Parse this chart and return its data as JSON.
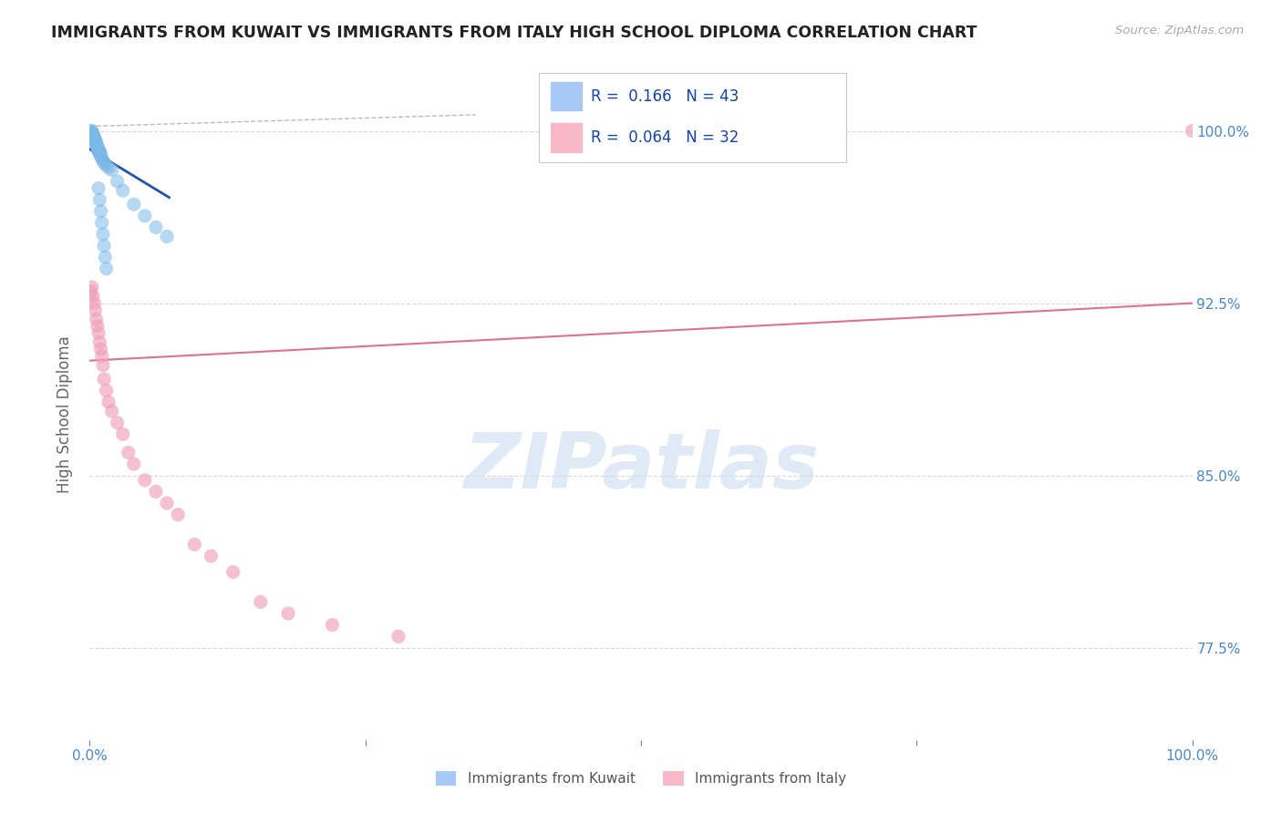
{
  "title": "IMMIGRANTS FROM KUWAIT VS IMMIGRANTS FROM ITALY HIGH SCHOOL DIPLOMA CORRELATION CHART",
  "source_text": "Source: ZipAtlas.com",
  "ylabel": "High School Diploma",
  "x_min": 0.0,
  "x_max": 1.0,
  "y_min": 0.735,
  "y_max": 1.018,
  "y_ticks": [
    0.775,
    0.85,
    0.925,
    1.0
  ],
  "y_tick_labels": [
    "77.5%",
    "85.0%",
    "92.5%",
    "100.0%"
  ],
  "kuwait_color": "#7ab8e8",
  "italy_color": "#f0a0b8",
  "kuwait_line_color": "#2255aa",
  "italy_line_color": "#e07090",
  "diag_color": "#bbbbbb",
  "grid_color": "#d8d8d8",
  "background_color": "#ffffff",
  "watermark_text": "ZIPatlas",
  "watermark_color": "#ccddf0",
  "title_color": "#222222",
  "source_color": "#aaaaaa",
  "tick_label_color": "#4488cc",
  "ylabel_color": "#666666",
  "legend_box_color": "#cccccc",
  "legend_blue_fill": "#a8c8f8",
  "legend_pink_fill": "#f8b8c8",
  "legend_text_color": "#1144aa",
  "bottom_legend_text_color": "#555555",
  "kuwait_scatter_x": [
    0.001,
    0.002,
    0.002,
    0.003,
    0.003,
    0.003,
    0.004,
    0.004,
    0.005,
    0.005,
    0.005,
    0.006,
    0.006,
    0.006,
    0.007,
    0.007,
    0.007,
    0.008,
    0.008,
    0.009,
    0.009,
    0.01,
    0.01,
    0.011,
    0.012,
    0.013,
    0.015,
    0.017,
    0.02,
    0.025,
    0.03,
    0.04,
    0.05,
    0.06,
    0.07,
    0.008,
    0.009,
    0.01,
    0.011,
    0.012,
    0.013,
    0.014,
    0.015
  ],
  "kuwait_scatter_y": [
    1.0,
    1.0,
    0.999,
    0.999,
    0.998,
    0.998,
    0.997,
    0.997,
    0.996,
    0.996,
    0.995,
    0.995,
    0.994,
    0.994,
    0.993,
    0.993,
    0.992,
    0.992,
    0.991,
    0.991,
    0.99,
    0.99,
    0.989,
    0.988,
    0.987,
    0.986,
    0.985,
    0.984,
    0.983,
    0.978,
    0.974,
    0.968,
    0.963,
    0.958,
    0.954,
    0.975,
    0.97,
    0.965,
    0.96,
    0.955,
    0.95,
    0.945,
    0.94
  ],
  "italy_scatter_x": [
    0.001,
    0.002,
    0.003,
    0.004,
    0.005,
    0.006,
    0.007,
    0.008,
    0.009,
    0.01,
    0.011,
    0.012,
    0.013,
    0.015,
    0.017,
    0.02,
    0.025,
    0.03,
    0.035,
    0.04,
    0.05,
    0.06,
    0.07,
    0.08,
    0.095,
    0.11,
    0.13,
    0.155,
    0.18,
    0.22,
    0.28,
    1.0
  ],
  "italy_scatter_y": [
    0.93,
    0.932,
    0.928,
    0.925,
    0.922,
    0.918,
    0.915,
    0.912,
    0.908,
    0.905,
    0.902,
    0.898,
    0.892,
    0.887,
    0.882,
    0.878,
    0.873,
    0.868,
    0.86,
    0.855,
    0.848,
    0.843,
    0.838,
    0.833,
    0.82,
    0.815,
    0.808,
    0.795,
    0.79,
    0.785,
    0.78,
    1.0
  ],
  "kuwait_line_x0": 0.0,
  "kuwait_line_x1": 0.072,
  "kuwait_line_y0": 0.992,
  "kuwait_line_y1": 0.971,
  "italy_line_x0": 0.0,
  "italy_line_x1": 1.0,
  "italy_line_y0": 0.9,
  "italy_line_y1": 0.925,
  "diag_line_x0": 0.0,
  "diag_line_x1": 0.45,
  "diag_line_y0": 1.0,
  "diag_line_y1": 0.995
}
